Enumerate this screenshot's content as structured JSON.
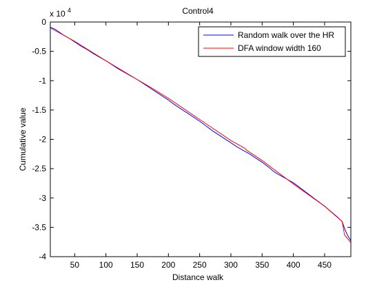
{
  "chart_data": {
    "type": "line",
    "title": "Control4",
    "xlabel": "Distance walk",
    "ylabel": "Cumulative value",
    "y_exponent_label": "x 10",
    "y_exponent_power": "4",
    "xlim": [
      11,
      492
    ],
    "ylim": [
      -4,
      0
    ],
    "x_ticks": [
      50,
      100,
      150,
      200,
      250,
      300,
      350,
      400,
      450
    ],
    "y_ticks": [
      0,
      -0.5,
      -1,
      -1.5,
      -2,
      -2.5,
      -3,
      -3.5,
      -4
    ],
    "y_tick_labels": [
      "0",
      "-0.5",
      "-1",
      "-1.5",
      "-2",
      "-2.5",
      "-3",
      "-3.5",
      "-4"
    ],
    "grid": false,
    "legend_position": "top-right",
    "series": [
      {
        "name": "Random walk over the HR",
        "color": "#0000ff",
        "x": [
          11,
          18,
          25,
          32,
          40,
          50,
          60,
          70,
          80,
          90,
          100,
          110,
          120,
          130,
          140,
          150,
          160,
          170,
          180,
          190,
          200,
          210,
          220,
          230,
          240,
          250,
          260,
          270,
          280,
          290,
          300,
          310,
          320,
          330,
          340,
          350,
          360,
          370,
          380,
          390,
          400,
          410,
          420,
          430,
          440,
          450,
          460,
          470,
          478,
          482,
          486,
          492
        ],
        "y": [
          -0.09,
          -0.12,
          -0.17,
          -0.22,
          -0.27,
          -0.34,
          -0.41,
          -0.47,
          -0.54,
          -0.6,
          -0.66,
          -0.73,
          -0.8,
          -0.86,
          -0.92,
          -0.98,
          -1.05,
          -1.12,
          -1.19,
          -1.26,
          -1.33,
          -1.41,
          -1.48,
          -1.55,
          -1.62,
          -1.69,
          -1.77,
          -1.85,
          -1.92,
          -1.99,
          -2.06,
          -2.13,
          -2.19,
          -2.25,
          -2.32,
          -2.39,
          -2.47,
          -2.56,
          -2.62,
          -2.68,
          -2.74,
          -2.82,
          -2.9,
          -2.98,
          -3.06,
          -3.14,
          -3.23,
          -3.32,
          -3.4,
          -3.52,
          -3.62,
          -3.73
        ]
      },
      {
        "name": "DFA window width 160",
        "color": "#ff0000",
        "x": [
          11,
          50,
          100,
          150,
          171,
          200,
          250,
          300,
          322,
          326,
          350,
          400,
          450,
          478,
          482,
          492
        ],
        "y": [
          -0.1,
          -0.33,
          -0.66,
          -0.98,
          -1.11,
          -1.3,
          -1.66,
          -2.02,
          -2.15,
          -2.19,
          -2.36,
          -2.76,
          -3.14,
          -3.4,
          -3.63,
          -3.76
        ]
      }
    ]
  }
}
